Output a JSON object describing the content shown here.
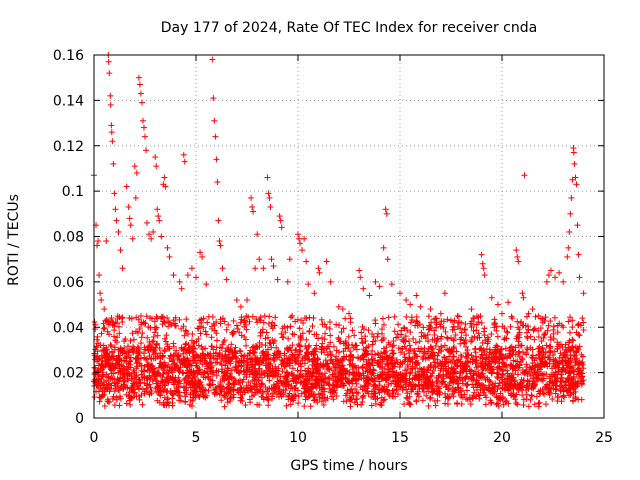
{
  "chart_data": {
    "type": "scatter",
    "title": "Day 177 of 2024, Rate Of TEC Index for receiver cnda",
    "xlabel": "GPS time / hours",
    "ylabel": "ROTI / TECUs",
    "xlim": [
      0,
      25
    ],
    "ylim": [
      0,
      0.16
    ],
    "xticks": [
      0,
      5,
      10,
      15,
      20,
      25
    ],
    "xtick_labels": [
      "0",
      "5",
      "10",
      "15",
      "20",
      "25"
    ],
    "yticks": [
      0,
      0.02,
      0.04,
      0.06,
      0.08,
      0.1,
      0.12,
      0.14,
      0.16
    ],
    "ytick_labels": [
      "0",
      "0.02",
      "0.04",
      "0.06",
      "0.08",
      "0.1",
      "0.12",
      "0.14",
      "0.16"
    ],
    "grid": true,
    "marker": "+",
    "color": "#ff0000",
    "series": [
      {
        "name": "ROTI",
        "points": [
          [
            0.0,
            0.107
          ],
          [
            0.1,
            0.085
          ],
          [
            0.15,
            0.076
          ],
          [
            0.2,
            0.078
          ],
          [
            0.25,
            0.063
          ],
          [
            0.3,
            0.055
          ],
          [
            0.35,
            0.052
          ],
          [
            0.5,
            0.048
          ],
          [
            0.6,
            0.078
          ],
          [
            0.7,
            0.16
          ],
          [
            0.72,
            0.157
          ],
          [
            0.75,
            0.152
          ],
          [
            0.8,
            0.142
          ],
          [
            0.82,
            0.138
          ],
          [
            0.85,
            0.129
          ],
          [
            0.87,
            0.126
          ],
          [
            0.9,
            0.122
          ],
          [
            0.95,
            0.112
          ],
          [
            1.0,
            0.099
          ],
          [
            1.05,
            0.092
          ],
          [
            1.1,
            0.087
          ],
          [
            1.2,
            0.082
          ],
          [
            1.3,
            0.074
          ],
          [
            1.4,
            0.066
          ],
          [
            1.6,
            0.102
          ],
          [
            1.7,
            0.093
          ],
          [
            1.75,
            0.088
          ],
          [
            1.8,
            0.085
          ],
          [
            1.9,
            0.079
          ],
          [
            2.0,
            0.111
          ],
          [
            2.05,
            0.097
          ],
          [
            2.1,
            0.108
          ],
          [
            2.2,
            0.15
          ],
          [
            2.25,
            0.147
          ],
          [
            2.3,
            0.143
          ],
          [
            2.35,
            0.139
          ],
          [
            2.4,
            0.131
          ],
          [
            2.45,
            0.128
          ],
          [
            2.5,
            0.124
          ],
          [
            2.55,
            0.118
          ],
          [
            2.6,
            0.086
          ],
          [
            2.7,
            0.081
          ],
          [
            2.8,
            0.079
          ],
          [
            2.9,
            0.082
          ],
          [
            3.0,
            0.115
          ],
          [
            3.05,
            0.111
          ],
          [
            3.1,
            0.092
          ],
          [
            3.15,
            0.089
          ],
          [
            3.2,
            0.087
          ],
          [
            3.3,
            0.08
          ],
          [
            3.4,
            0.103
          ],
          [
            3.45,
            0.106
          ],
          [
            3.5,
            0.102
          ],
          [
            3.6,
            0.075
          ],
          [
            3.7,
            0.071
          ],
          [
            3.9,
            0.063
          ],
          [
            4.2,
            0.06
          ],
          [
            4.3,
            0.057
          ],
          [
            4.4,
            0.116
          ],
          [
            4.45,
            0.113
          ],
          [
            4.6,
            0.063
          ],
          [
            4.8,
            0.066
          ],
          [
            5.0,
            0.062
          ],
          [
            5.2,
            0.073
          ],
          [
            5.3,
            0.071
          ],
          [
            5.5,
            0.059
          ],
          [
            5.8,
            0.158
          ],
          [
            5.85,
            0.141
          ],
          [
            5.9,
            0.131
          ],
          [
            5.95,
            0.124
          ],
          [
            6.0,
            0.114
          ],
          [
            6.05,
            0.104
          ],
          [
            6.1,
            0.087
          ],
          [
            6.15,
            0.078
          ],
          [
            6.2,
            0.076
          ],
          [
            6.3,
            0.066
          ],
          [
            6.5,
            0.061
          ],
          [
            7.0,
            0.052
          ],
          [
            7.2,
            0.049
          ],
          [
            7.5,
            0.052
          ],
          [
            7.7,
            0.097
          ],
          [
            7.75,
            0.093
          ],
          [
            7.8,
            0.091
          ],
          [
            7.9,
            0.066
          ],
          [
            8.0,
            0.081
          ],
          [
            8.1,
            0.07
          ],
          [
            8.3,
            0.066
          ],
          [
            8.5,
            0.106
          ],
          [
            8.55,
            0.099
          ],
          [
            8.6,
            0.097
          ],
          [
            8.65,
            0.093
          ],
          [
            8.7,
            0.07
          ],
          [
            8.8,
            0.067
          ],
          [
            9.0,
            0.061
          ],
          [
            9.1,
            0.089
          ],
          [
            9.15,
            0.087
          ],
          [
            9.2,
            0.084
          ],
          [
            9.5,
            0.06
          ],
          [
            9.6,
            0.07
          ],
          [
            10.0,
            0.081
          ],
          [
            10.05,
            0.079
          ],
          [
            10.1,
            0.077
          ],
          [
            10.2,
            0.074
          ],
          [
            10.3,
            0.079
          ],
          [
            10.4,
            0.069
          ],
          [
            10.5,
            0.059
          ],
          [
            10.8,
            0.055
          ],
          [
            11.0,
            0.066
          ],
          [
            11.05,
            0.064
          ],
          [
            11.4,
            0.069
          ],
          [
            11.6,
            0.06
          ],
          [
            12.0,
            0.049
          ],
          [
            12.2,
            0.048
          ],
          [
            12.5,
            0.046
          ],
          [
            13.0,
            0.065
          ],
          [
            13.05,
            0.062
          ],
          [
            13.2,
            0.057
          ],
          [
            13.5,
            0.054
          ],
          [
            13.8,
            0.06
          ],
          [
            14.0,
            0.058
          ],
          [
            14.2,
            0.075
          ],
          [
            14.3,
            0.092
          ],
          [
            14.35,
            0.09
          ],
          [
            14.4,
            0.07
          ],
          [
            14.6,
            0.059
          ],
          [
            15.0,
            0.055
          ],
          [
            15.3,
            0.052
          ],
          [
            15.5,
            0.05
          ],
          [
            15.8,
            0.054
          ],
          [
            16.0,
            0.049
          ],
          [
            16.5,
            0.048
          ],
          [
            17.0,
            0.046
          ],
          [
            17.2,
            0.055
          ],
          [
            17.5,
            0.043
          ],
          [
            18.0,
            0.042
          ],
          [
            18.5,
            0.048
          ],
          [
            19.0,
            0.072
          ],
          [
            19.05,
            0.068
          ],
          [
            19.1,
            0.066
          ],
          [
            19.15,
            0.063
          ],
          [
            19.5,
            0.053
          ],
          [
            19.8,
            0.05
          ],
          [
            20.0,
            0.046
          ],
          [
            20.3,
            0.051
          ],
          [
            20.5,
            0.044
          ],
          [
            20.7,
            0.074
          ],
          [
            20.75,
            0.071
          ],
          [
            20.8,
            0.069
          ],
          [
            21.0,
            0.055
          ],
          [
            21.05,
            0.053
          ],
          [
            21.1,
            0.107
          ],
          [
            21.3,
            0.046
          ],
          [
            21.5,
            0.048
          ],
          [
            21.8,
            0.045
          ],
          [
            22.0,
            0.042
          ],
          [
            22.2,
            0.06
          ],
          [
            22.3,
            0.063
          ],
          [
            22.4,
            0.065
          ],
          [
            22.6,
            0.062
          ],
          [
            22.8,
            0.064
          ],
          [
            23.0,
            0.06
          ],
          [
            23.2,
            0.071
          ],
          [
            23.25,
            0.075
          ],
          [
            23.3,
            0.082
          ],
          [
            23.35,
            0.09
          ],
          [
            23.4,
            0.097
          ],
          [
            23.45,
            0.105
          ],
          [
            23.5,
            0.119
          ],
          [
            23.52,
            0.117
          ],
          [
            23.55,
            0.112
          ],
          [
            23.6,
            0.106
          ],
          [
            23.65,
            0.103
          ],
          [
            23.7,
            0.085
          ],
          [
            23.75,
            0.072
          ],
          [
            23.8,
            0.062
          ],
          [
            24.0,
            0.055
          ]
        ],
        "dense_band": {
          "x_range": [
            0,
            24
          ],
          "y_floor": 0.005,
          "typical_low": 0.01,
          "typical_high": 0.03,
          "max_common": 0.045
        }
      }
    ]
  }
}
